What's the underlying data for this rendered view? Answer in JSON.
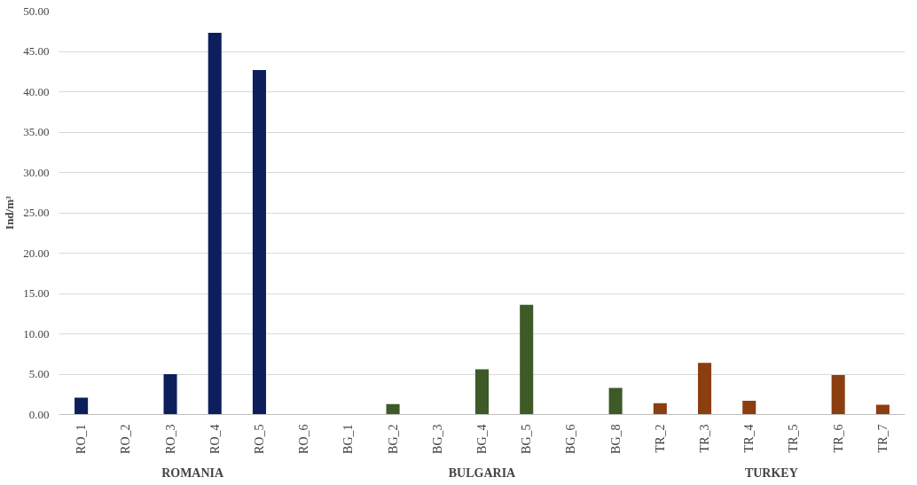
{
  "chart_data": {
    "type": "bar",
    "ylabel": "Ind/m³",
    "categories": [
      "RO_1",
      "RO_2",
      "RO_3",
      "RO_4",
      "RO_5",
      "RO_6",
      "BG_1",
      "BG_2",
      "BG_3",
      "BG_4",
      "BG_5",
      "BG_6",
      "BG_8",
      "TR_2",
      "TR_3",
      "TR_4",
      "TR_5",
      "TR_6",
      "TR_7"
    ],
    "series": [
      {
        "color": "#0c1f5c",
        "values": [
          2.1,
          0,
          5.0,
          47.3,
          42.7,
          0,
          null,
          null,
          null,
          null,
          null,
          null,
          null,
          null,
          null,
          null,
          null,
          null,
          null
        ]
      },
      {
        "color": "#3d5a27",
        "values": [
          null,
          null,
          null,
          null,
          null,
          null,
          0,
          1.3,
          0,
          5.6,
          13.6,
          0,
          3.3,
          null,
          null,
          null,
          null,
          null,
          null
        ]
      },
      {
        "color": "#8b3e0f",
        "values": [
          null,
          null,
          null,
          null,
          null,
          null,
          null,
          null,
          null,
          null,
          null,
          null,
          null,
          1.4,
          6.4,
          1.7,
          0,
          4.9,
          1.2
        ]
      }
    ],
    "ylim": [
      0,
      50
    ],
    "yticks": [
      {
        "value": 0,
        "label": "0.00"
      },
      {
        "value": 5,
        "label": "5.00"
      },
      {
        "value": 10,
        "label": "10.00"
      },
      {
        "value": 15,
        "label": "15.00"
      },
      {
        "value": 20,
        "label": "20.00"
      },
      {
        "value": 25,
        "label": "25.00"
      },
      {
        "value": 30,
        "label": "30.00"
      },
      {
        "value": 35,
        "label": "35.00"
      },
      {
        "value": 40,
        "label": "40.00"
      },
      {
        "value": 45,
        "label": "45.00"
      },
      {
        "value": 50,
        "label": "50.00"
      }
    ],
    "grid": "y",
    "annotations": [
      "ROMANIA",
      "BULGARIA",
      "TURKEY"
    ]
  }
}
